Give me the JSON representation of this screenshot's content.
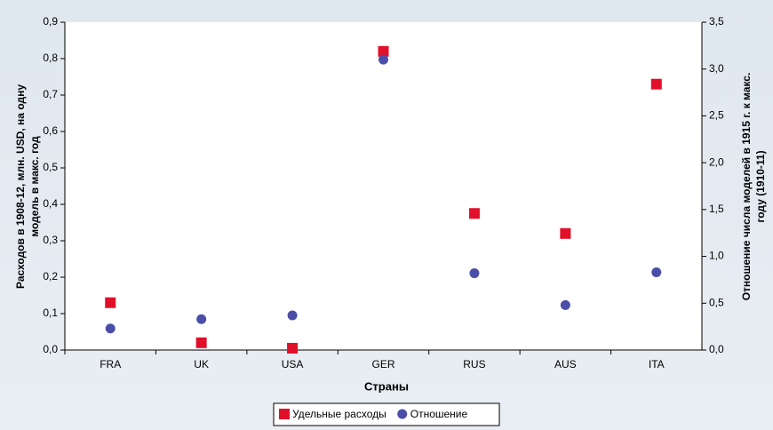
{
  "chart_data": {
    "type": "scatter",
    "xlabel": "Страны",
    "ylabel": [
      "Расходов в 1908-12, млн. USD, на одну",
      "модель в макс. год"
    ],
    "y2label": [
      "Отношение числа моделей в 1915 г. к макс.",
      "году (1910-11)"
    ],
    "categories": [
      "FRA",
      "UK",
      "USA",
      "GER",
      "RUS",
      "AUS",
      "ITA"
    ],
    "series": [
      {
        "name": "Удельные расходы",
        "color": "#e0102a",
        "marker": "square",
        "values": [
          0.13,
          0.02,
          0.005,
          0.82,
          0.375,
          0.32,
          0.73
        ]
      },
      {
        "name": "Отношение",
        "color": "#4a4ea8",
        "marker": "circle",
        "axis": "y2",
        "values": [
          0.23,
          0.33,
          0.37,
          3.1,
          0.82,
          0.48,
          0.83
        ]
      }
    ],
    "ylim": [
      0,
      0.9
    ],
    "yticks": [
      {
        "value": 0,
        "label": "0,0"
      },
      {
        "value": 0.1,
        "label": "0,1"
      },
      {
        "value": 0.2,
        "label": "0,2"
      },
      {
        "value": 0.3,
        "label": "0,3"
      },
      {
        "value": 0.4,
        "label": "0,4"
      },
      {
        "value": 0.5,
        "label": "0,5"
      },
      {
        "value": 0.6,
        "label": "0,6"
      },
      {
        "value": 0.7,
        "label": "0,7"
      },
      {
        "value": 0.8,
        "label": "0,8"
      },
      {
        "value": 0.9,
        "label": "0,9"
      }
    ],
    "y2lim": [
      0,
      3.5
    ],
    "y2ticks": [
      {
        "value": 0,
        "label": "0,0"
      },
      {
        "value": 0.5,
        "label": "0,5"
      },
      {
        "value": 1,
        "label": "1,0"
      },
      {
        "value": 1.5,
        "label": "1,5"
      },
      {
        "value": 2,
        "label": "2,0"
      },
      {
        "value": 2.5,
        "label": "2,5"
      },
      {
        "value": 3,
        "label": "3,0"
      },
      {
        "value": 3.5,
        "label": "3,5"
      }
    ]
  }
}
